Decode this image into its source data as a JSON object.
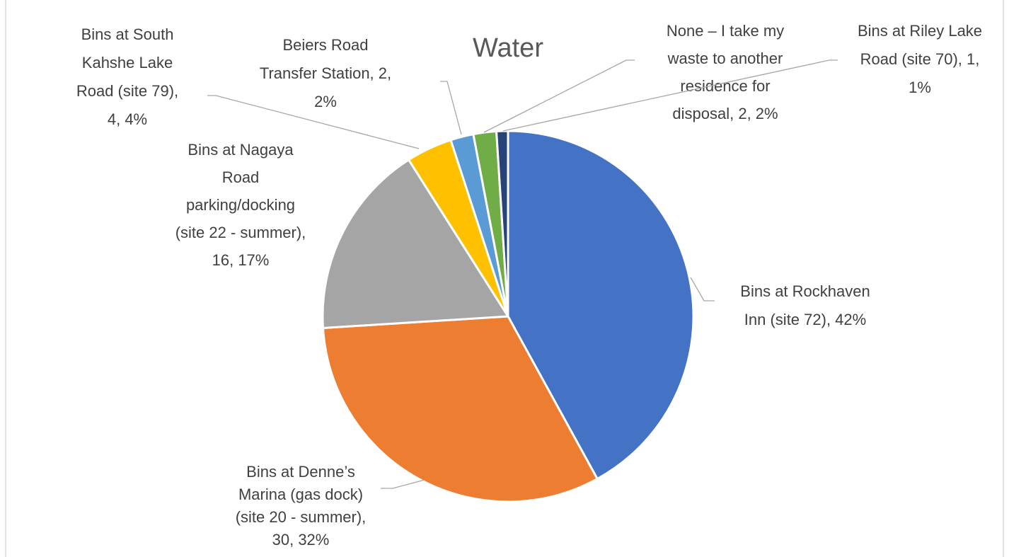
{
  "chart_data": {
    "type": "pie",
    "title": "Water",
    "categories": [
      "Bins at Rockhaven Inn (site 72)",
      "Bins at Denne’s Marina (gas dock) (site 20 - summer)",
      "Bins at Nagaya Road parking/docking (site 22 - summer)",
      "Bins at South Kahshe Lake Road (site 79)",
      "Beiers Road Transfer Station",
      "None – I take my waste to another residence for disposal",
      "Bins at Riley Lake Road (site 70)"
    ],
    "values": [
      42,
      32,
      17,
      4,
      2,
      2,
      1
    ],
    "value_labels": [
      [
        "Bins at Rockhaven",
        "Inn (site 72), 42%"
      ],
      [
        "Bins at Denne’s",
        "Marina (gas dock)",
        "(site 20 - summer),",
        "30, 32%"
      ],
      [
        "Bins at Nagaya",
        "Road",
        "parking/docking",
        "(site 22 - summer),",
        "16, 17%"
      ],
      [
        "Bins at South",
        "Kahshe Lake",
        "Road (site 79),",
        "4, 4%"
      ],
      [
        "Beiers Road",
        "Transfer Station, 2,",
        "2%"
      ],
      [
        "None – I take my",
        "waste to another",
        "residence for",
        "disposal, 2, 2%"
      ],
      [
        "Bins at Riley Lake",
        "Road (site 70), 1,",
        "1%"
      ]
    ],
    "colors": [
      "#4472c4",
      "#ed7d31",
      "#a5a5a5",
      "#ffc000",
      "#5b9bd5",
      "#70ad47",
      "#264478"
    ]
  }
}
